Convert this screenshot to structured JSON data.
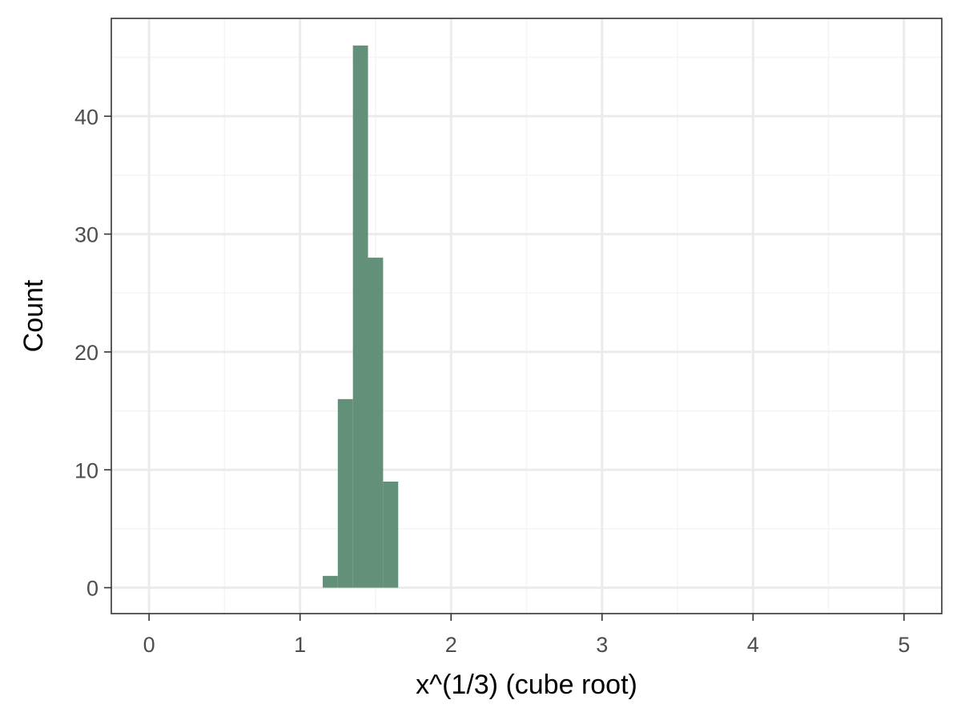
{
  "chart_data": {
    "type": "bar",
    "subtype": "histogram",
    "xlabel": "x^(1/3) (cube root)",
    "ylabel": "Count",
    "xlim": [
      -0.25,
      5.25
    ],
    "ylim": [
      -2.2,
      48.3
    ],
    "x_ticks": [
      0,
      1,
      2,
      3,
      4,
      5
    ],
    "x_tick_labels": [
      "0",
      "1",
      "2",
      "3",
      "4",
      "5"
    ],
    "y_ticks": [
      0,
      10,
      20,
      30,
      40
    ],
    "y_tick_labels": [
      "0",
      "10",
      "20",
      "30",
      "40"
    ],
    "x_minor_gridlines": [
      0.5,
      1.5,
      2.5,
      3.5,
      4.5
    ],
    "y_minor_gridlines": [
      5,
      15,
      25,
      35,
      45
    ],
    "grid": true,
    "bins": [
      {
        "x0": 1.15,
        "x1": 1.25,
        "count": 1
      },
      {
        "x0": 1.25,
        "x1": 1.35,
        "count": 16
      },
      {
        "x0": 1.35,
        "x1": 1.45,
        "count": 46
      },
      {
        "x0": 1.45,
        "x1": 1.55,
        "count": 28
      },
      {
        "x0": 1.55,
        "x1": 1.65,
        "count": 9
      }
    ],
    "colors": {
      "bar_fill": "#639078",
      "panel_border": "#333333",
      "grid_major": "#ebebeb",
      "grid_minor": "#f4f4f4",
      "tick_label": "#4d4d4d",
      "axis_title": "#000000"
    }
  }
}
